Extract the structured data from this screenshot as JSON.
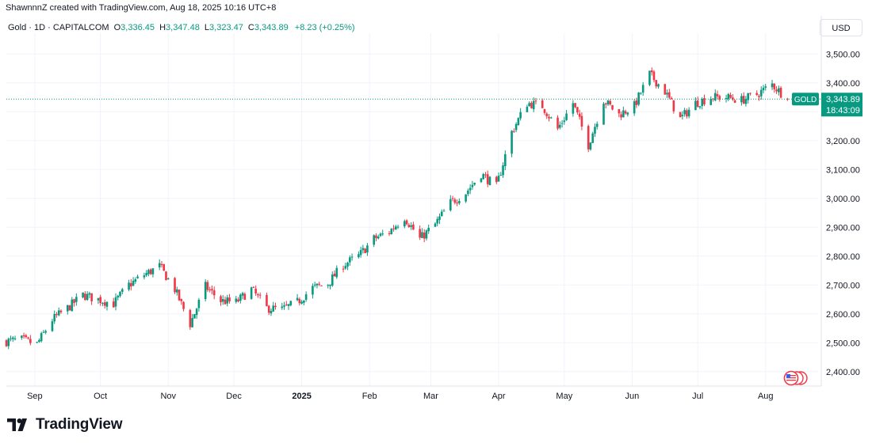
{
  "attribution": "ShawnnnZ created with TradingView.com, Aug 18, 2025 10:16 UTC+8",
  "legend": {
    "symbol": "Gold · 1D · CAPITALCOM",
    "open_key": "O",
    "open": "3,336.45",
    "high_key": "H",
    "high": "3,347.48",
    "low_key": "L",
    "low": "3,323.47",
    "close_key": "C",
    "close": "3,343.89",
    "change": "+8.23 (+0.25%)"
  },
  "currency_button": "USD",
  "price_tag": {
    "label": "GOLD",
    "price": "3,343.89",
    "countdown": "18:43:09"
  },
  "brand": {
    "name": "TradingView"
  },
  "colors": {
    "up": "#089981",
    "down": "#f23645",
    "grid": "#f0f3fa",
    "last_price": "#089981"
  },
  "chart_data": {
    "type": "candlestick",
    "title": "Gold · 1D · CAPITALCOM",
    "ylim": [
      2350,
      3550
    ],
    "y_ticks": [
      2400,
      2500,
      2600,
      2700,
      2800,
      2900,
      3000,
      3100,
      3200,
      3300,
      3400,
      3500
    ],
    "y_tick_labels": [
      "2,400.00",
      "2,500.00",
      "2,600.00",
      "2,700.00",
      "2,800.00",
      "2,900.00",
      "3,000.00",
      "3,100.00",
      "3,200.00",
      "3,300.00",
      "3,400.00",
      "3,500.00"
    ],
    "x_start": "2024-08-19",
    "x_end": "2025-08-25",
    "x_ticks": [
      {
        "date": "2024-09-01",
        "label": "Sep",
        "bold": false
      },
      {
        "date": "2024-10-01",
        "label": "Oct",
        "bold": false
      },
      {
        "date": "2024-11-01",
        "label": "Nov",
        "bold": false
      },
      {
        "date": "2024-12-01",
        "label": "Dec",
        "bold": false
      },
      {
        "date": "2025-01-01",
        "label": "2025",
        "bold": true
      },
      {
        "date": "2025-02-01",
        "label": "Feb",
        "bold": false
      },
      {
        "date": "2025-03-01",
        "label": "Mar",
        "bold": false
      },
      {
        "date": "2025-04-01",
        "label": "Apr",
        "bold": false
      },
      {
        "date": "2025-05-01",
        "label": "May",
        "bold": false
      },
      {
        "date": "2025-06-01",
        "label": "Jun",
        "bold": false
      },
      {
        "date": "2025-07-01",
        "label": "Jul",
        "bold": false
      },
      {
        "date": "2025-08-01",
        "label": "Aug",
        "bold": false
      }
    ],
    "last_price": 3343.89,
    "grid": true,
    "closes": [
      {
        "date": "2024-08-19",
        "close": 2505
      },
      {
        "date": "2024-08-26",
        "close": 2510
      },
      {
        "date": "2024-09-02",
        "close": 2495
      },
      {
        "date": "2024-09-09",
        "close": 2580
      },
      {
        "date": "2024-09-16",
        "close": 2620
      },
      {
        "date": "2024-09-23",
        "close": 2665
      },
      {
        "date": "2024-09-30",
        "close": 2650
      },
      {
        "date": "2024-10-07",
        "close": 2635
      },
      {
        "date": "2024-10-14",
        "close": 2700
      },
      {
        "date": "2024-10-21",
        "close": 2735
      },
      {
        "date": "2024-10-28",
        "close": 2765
      },
      {
        "date": "2024-11-04",
        "close": 2685
      },
      {
        "date": "2024-11-11",
        "close": 2565
      },
      {
        "date": "2024-11-18",
        "close": 2695
      },
      {
        "date": "2024-11-25",
        "close": 2645
      },
      {
        "date": "2024-12-02",
        "close": 2640
      },
      {
        "date": "2024-12-09",
        "close": 2685
      },
      {
        "date": "2024-12-16",
        "close": 2620
      },
      {
        "date": "2024-12-23",
        "close": 2615
      },
      {
        "date": "2024-12-30",
        "close": 2640
      },
      {
        "date": "2025-01-06",
        "close": 2690
      },
      {
        "date": "2025-01-13",
        "close": 2705
      },
      {
        "date": "2025-01-20",
        "close": 2770
      },
      {
        "date": "2025-01-27",
        "close": 2800
      },
      {
        "date": "2025-02-03",
        "close": 2860
      },
      {
        "date": "2025-02-10",
        "close": 2885
      },
      {
        "date": "2025-02-17",
        "close": 2935
      },
      {
        "date": "2025-02-24",
        "close": 2860
      },
      {
        "date": "2025-03-03",
        "close": 2910
      },
      {
        "date": "2025-03-10",
        "close": 2985
      },
      {
        "date": "2025-03-17",
        "close": 3020
      },
      {
        "date": "2025-03-24",
        "close": 3085
      },
      {
        "date": "2025-03-31",
        "close": 3040
      },
      {
        "date": "2025-04-07",
        "close": 3230
      },
      {
        "date": "2025-04-14",
        "close": 3330
      },
      {
        "date": "2025-04-21",
        "close": 3320
      },
      {
        "date": "2025-04-28",
        "close": 3240
      },
      {
        "date": "2025-05-05",
        "close": 3330
      },
      {
        "date": "2025-05-12",
        "close": 3185
      },
      {
        "date": "2025-05-19",
        "close": 3340
      },
      {
        "date": "2025-05-26",
        "close": 3290
      },
      {
        "date": "2025-06-02",
        "close": 3320
      },
      {
        "date": "2025-06-09",
        "close": 3430
      },
      {
        "date": "2025-06-16",
        "close": 3370
      },
      {
        "date": "2025-06-23",
        "close": 3275
      },
      {
        "date": "2025-06-30",
        "close": 3330
      },
      {
        "date": "2025-07-07",
        "close": 3350
      },
      {
        "date": "2025-07-14",
        "close": 3350
      },
      {
        "date": "2025-07-21",
        "close": 3340
      },
      {
        "date": "2025-07-28",
        "close": 3360
      },
      {
        "date": "2025-08-04",
        "close": 3395
      },
      {
        "date": "2025-08-11",
        "close": 3343.89
      }
    ]
  }
}
